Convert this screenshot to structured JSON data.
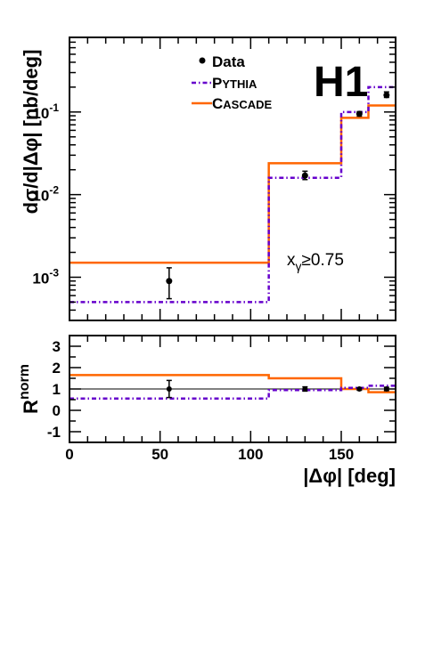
{
  "chart_data": [
    {
      "type": "line",
      "panel": "upper",
      "ylabel": "dσ/d|Δφ| [nb/deg]",
      "xlim": [
        0,
        180
      ],
      "ylim": [
        0.0003,
        0.8
      ],
      "yscale": "log",
      "y_ticks": [
        {
          "value": 0.001,
          "mantissa": "10",
          "exponent": "-3"
        },
        {
          "value": 0.01,
          "mantissa": "10",
          "exponent": "-2"
        },
        {
          "value": 0.1,
          "mantissa": "10",
          "exponent": "-1"
        }
      ],
      "annotation": {
        "base": "x",
        "sub": "γ",
        "rest": "≥0.75"
      },
      "logo": "H1",
      "legend_position": "top-center",
      "legend": [
        {
          "key": "data",
          "label": "Data",
          "small_caps": false
        },
        {
          "key": "pythia",
          "label": "Pythia",
          "small_caps": true
        },
        {
          "key": "cascade",
          "label": "Cascade",
          "small_caps": true
        }
      ],
      "bin_edges": [
        0,
        110,
        150,
        165,
        180
      ],
      "series": [
        {
          "key": "cascade",
          "color": "#ff6600",
          "values": [
            0.0015,
            0.024,
            0.085,
            0.12
          ]
        },
        {
          "key": "pythia",
          "color": "#6600cc",
          "values": [
            0.0005,
            0.016,
            0.1,
            0.2
          ]
        },
        {
          "key": "data",
          "color": "#000000",
          "points": [
            {
              "x": 55,
              "y": 0.0009,
              "err_low": 0.00055,
              "err_high": 0.0013
            },
            {
              "x": 130,
              "y": 0.017,
              "err_low": 0.0152,
              "err_high": 0.0192
            },
            {
              "x": 160,
              "y": 0.095,
              "err_low": 0.089,
              "err_high": 0.101
            },
            {
              "x": 175,
              "y": 0.16,
              "err_low": 0.15,
              "err_high": 0.175
            }
          ]
        }
      ]
    },
    {
      "type": "line",
      "panel": "lower",
      "ylabel_base": "R",
      "ylabel_sup": "norm",
      "xlabel": "|Δφ| [deg]",
      "xlim": [
        0,
        180
      ],
      "ylim": [
        -1.5,
        3.5
      ],
      "x_ticks": [
        "0",
        "50",
        "100",
        "150"
      ],
      "y_ticks": [
        "-1",
        "0",
        "1",
        "2",
        "3"
      ],
      "reference_line": 1,
      "bin_edges": [
        0,
        110,
        150,
        165,
        180
      ],
      "series": [
        {
          "key": "cascade",
          "color": "#ff6600",
          "values": [
            1.65,
            1.5,
            1.0,
            0.85
          ]
        },
        {
          "key": "pythia",
          "color": "#6600cc",
          "values": [
            0.55,
            0.95,
            1.05,
            1.15
          ]
        },
        {
          "key": "data",
          "color": "#000000",
          "points": [
            {
              "x": 55,
              "y": 1.0,
              "err_low": 0.6,
              "err_high": 1.4
            },
            {
              "x": 130,
              "y": 1.0,
              "err_low": 0.9,
              "err_high": 1.1
            },
            {
              "x": 160,
              "y": 1.0,
              "err_low": 0.94,
              "err_high": 1.06
            },
            {
              "x": 175,
              "y": 1.0,
              "err_low": 0.92,
              "err_high": 1.08
            }
          ]
        }
      ]
    }
  ]
}
